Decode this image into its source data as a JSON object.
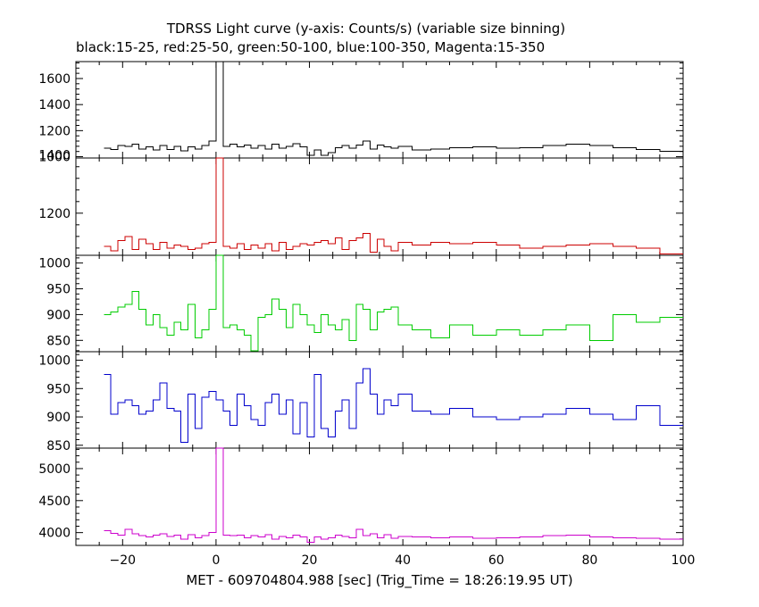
{
  "chart_data": {
    "type": "line",
    "title": "TDRSS Light curve (y-axis: Counts/s) (variable size binning)",
    "subtitle": "black:15-25, red:25-50, green:50-100, blue:100-350, Magenta:15-350",
    "xlabel": "MET - 609704804.988 [sec] (Trig_Time = 18:26:19.95 UT)",
    "xlim": [
      -30,
      100
    ],
    "x_ticks": [
      -20,
      0,
      20,
      40,
      60,
      80,
      100
    ],
    "x_tick_labels": [
      "−20",
      "0",
      "20",
      "40",
      "60",
      "80",
      "100"
    ],
    "grid": false,
    "panels": [
      {
        "color": "#000000",
        "ylim": [
          990,
          1730
        ],
        "y_ticks": [
          1000,
          1200,
          1400,
          1600
        ],
        "x": [
          -24,
          -22.5,
          -21,
          -19.5,
          -18,
          -16.5,
          -15,
          -13.5,
          -12,
          -10.5,
          -9,
          -7.5,
          -6,
          -4.5,
          -3,
          -1.5,
          0,
          1.5,
          3,
          4.5,
          6,
          7.5,
          9,
          10.5,
          12,
          13.5,
          15,
          16.5,
          18,
          19.5,
          21,
          22.5,
          24,
          25.5,
          27,
          28.5,
          30,
          31.5,
          33,
          34.5,
          36,
          37.5,
          39,
          42,
          46,
          50,
          55,
          60,
          65,
          70,
          75,
          80,
          85,
          90,
          95,
          100
        ],
        "y": [
          1065,
          1055,
          1085,
          1080,
          1095,
          1060,
          1075,
          1050,
          1085,
          1055,
          1080,
          1045,
          1075,
          1060,
          1085,
          1120,
          1730,
          1080,
          1095,
          1075,
          1090,
          1065,
          1085,
          1060,
          1095,
          1065,
          1080,
          1100,
          1075,
          1010,
          1050,
          1010,
          1030,
          1070,
          1085,
          1065,
          1090,
          1120,
          1060,
          1090,
          1075,
          1065,
          1080,
          1050,
          1060,
          1070,
          1075,
          1065,
          1070,
          1085,
          1095,
          1085,
          1070,
          1055,
          1040,
          1050
        ]
      },
      {
        "color": "#cc0000",
        "ylim": [
          1055,
          1390
        ],
        "y_ticks": [
          1200,
          1400
        ],
        "x": [
          -24,
          -22.5,
          -21,
          -19.5,
          -18,
          -16.5,
          -15,
          -13.5,
          -12,
          -10.5,
          -9,
          -7.5,
          -6,
          -4.5,
          -3,
          -1.5,
          0,
          1.5,
          3,
          4.5,
          6,
          7.5,
          9,
          10.5,
          12,
          13.5,
          15,
          16.5,
          18,
          19.5,
          21,
          22.5,
          24,
          25.5,
          27,
          28.5,
          30,
          31.5,
          33,
          34.5,
          36,
          37.5,
          39,
          42,
          46,
          50,
          55,
          60,
          65,
          70,
          75,
          80,
          85,
          90,
          95,
          100
        ],
        "y": [
          1085,
          1070,
          1105,
          1120,
          1075,
          1110,
          1095,
          1075,
          1100,
          1080,
          1090,
          1085,
          1075,
          1080,
          1095,
          1100,
          1390,
          1085,
          1080,
          1095,
          1075,
          1090,
          1080,
          1095,
          1070,
          1100,
          1075,
          1085,
          1095,
          1090,
          1100,
          1105,
          1095,
          1115,
          1075,
          1105,
          1115,
          1130,
          1065,
          1110,
          1085,
          1070,
          1100,
          1090,
          1100,
          1095,
          1100,
          1090,
          1080,
          1085,
          1090,
          1095,
          1085,
          1080,
          1060,
          1095
        ]
      },
      {
        "color": "#00cc00",
        "ylim": [
          828,
          1015
        ],
        "y_ticks": [
          850,
          900,
          950,
          1000
        ],
        "x": [
          -24,
          -22.5,
          -21,
          -19.5,
          -18,
          -16.5,
          -15,
          -13.5,
          -12,
          -10.5,
          -9,
          -7.5,
          -6,
          -4.5,
          -3,
          -1.5,
          0,
          1.5,
          3,
          4.5,
          6,
          7.5,
          9,
          10.5,
          12,
          13.5,
          15,
          16.5,
          18,
          19.5,
          21,
          22.5,
          24,
          25.5,
          27,
          28.5,
          30,
          31.5,
          33,
          34.5,
          36,
          37.5,
          39,
          42,
          46,
          50,
          55,
          60,
          65,
          70,
          75,
          80,
          85,
          90,
          95,
          100
        ],
        "y": [
          900,
          905,
          915,
          920,
          945,
          910,
          880,
          900,
          875,
          860,
          885,
          870,
          920,
          855,
          870,
          910,
          1015,
          875,
          880,
          870,
          860,
          830,
          895,
          900,
          930,
          910,
          875,
          920,
          900,
          880,
          865,
          900,
          880,
          870,
          890,
          850,
          920,
          910,
          870,
          905,
          910,
          915,
          880,
          870,
          855,
          880,
          860,
          870,
          860,
          870,
          880,
          850,
          900,
          885,
          895,
          870
        ]
      },
      {
        "color": "#0000cc",
        "ylim": [
          845,
          1015
        ],
        "y_ticks": [
          850,
          900,
          950,
          1000
        ],
        "x": [
          -24,
          -22.5,
          -21,
          -19.5,
          -18,
          -16.5,
          -15,
          -13.5,
          -12,
          -10.5,
          -9,
          -7.5,
          -6,
          -4.5,
          -3,
          -1.5,
          0,
          1.5,
          3,
          4.5,
          6,
          7.5,
          9,
          10.5,
          12,
          13.5,
          15,
          16.5,
          18,
          19.5,
          21,
          22.5,
          24,
          25.5,
          27,
          28.5,
          30,
          31.5,
          33,
          34.5,
          36,
          37.5,
          39,
          42,
          46,
          50,
          55,
          60,
          65,
          70,
          75,
          80,
          85,
          90,
          95,
          100
        ],
        "y": [
          975,
          905,
          925,
          930,
          920,
          905,
          910,
          930,
          960,
          915,
          910,
          855,
          940,
          880,
          935,
          945,
          930,
          910,
          885,
          940,
          920,
          895,
          885,
          925,
          940,
          905,
          930,
          870,
          925,
          865,
          975,
          880,
          865,
          910,
          930,
          880,
          960,
          985,
          940,
          905,
          930,
          920,
          940,
          910,
          905,
          915,
          900,
          895,
          900,
          905,
          915,
          905,
          895,
          920,
          885,
          890
        ]
      },
      {
        "color": "#cc00cc",
        "ylim": [
          3800,
          5320
        ],
        "y_ticks": [
          4000,
          4500,
          5000
        ],
        "x": [
          -24,
          -22.5,
          -21,
          -19.5,
          -18,
          -16.5,
          -15,
          -13.5,
          -12,
          -10.5,
          -9,
          -7.5,
          -6,
          -4.5,
          -3,
          -1.5,
          0,
          1.5,
          3,
          4.5,
          6,
          7.5,
          9,
          10.5,
          12,
          13.5,
          15,
          16.5,
          18,
          19.5,
          21,
          22.5,
          24,
          25.5,
          27,
          28.5,
          30,
          31.5,
          33,
          34.5,
          36,
          37.5,
          39,
          42,
          46,
          50,
          55,
          60,
          65,
          70,
          75,
          80,
          85,
          90,
          95,
          100
        ],
        "y": [
          4030,
          3990,
          3960,
          4050,
          3980,
          3950,
          3930,
          3960,
          3980,
          3940,
          3960,
          3900,
          3970,
          3920,
          3950,
          4000,
          5320,
          3960,
          3950,
          3960,
          3920,
          3950,
          3930,
          3970,
          3900,
          3940,
          3920,
          3960,
          3930,
          3850,
          3930,
          3900,
          3920,
          3960,
          3940,
          3920,
          4050,
          3950,
          3980,
          3920,
          3970,
          3910,
          3940,
          3930,
          3920,
          3930,
          3910,
          3920,
          3930,
          3950,
          3960,
          3930,
          3920,
          3910,
          3900,
          3920
        ]
      }
    ]
  }
}
